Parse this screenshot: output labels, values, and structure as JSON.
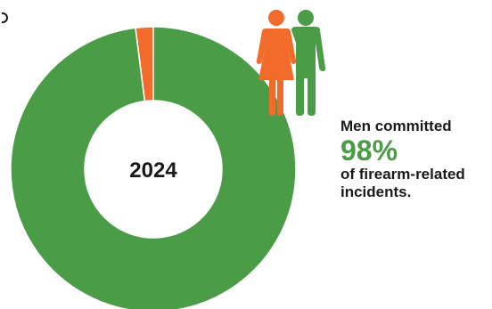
{
  "chart_data": {
    "type": "pie",
    "donut": true,
    "center_label": "2024",
    "slices": [
      {
        "label": "Men",
        "value": 98,
        "color": "#4a9d46"
      },
      {
        "label": "Women",
        "value": 2,
        "color": "#f26b2a"
      }
    ]
  },
  "callout": {
    "line1": "Men committed",
    "percent": "98%",
    "line2": "of firearm-related",
    "line3": "incidents."
  },
  "colors": {
    "men": "#4a9d46",
    "women": "#f26b2a"
  },
  "icons": {
    "woman": "woman-icon",
    "man": "man-icon"
  }
}
